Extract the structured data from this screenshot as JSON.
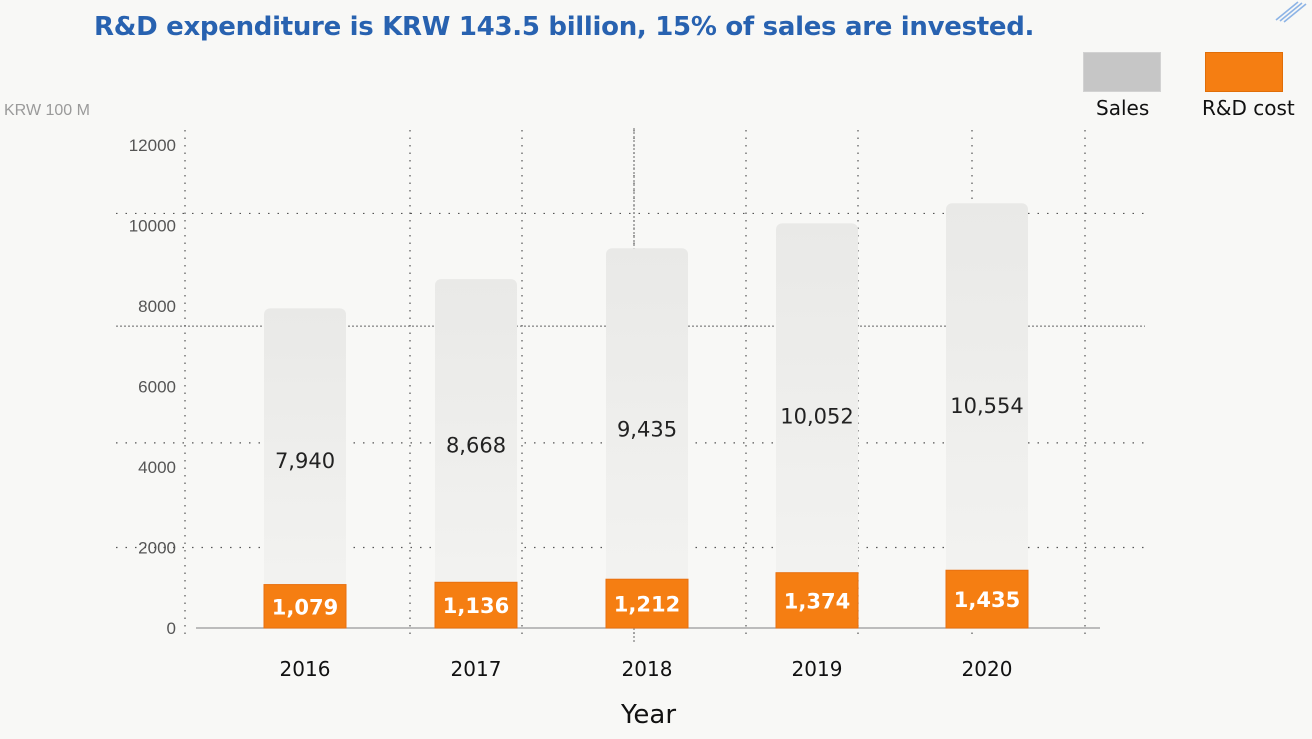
{
  "title": "R&D expenditure is KRW 143.5 billion, 15% of sales are invested.",
  "unit_label": "KRW 100 M",
  "legend": [
    {
      "label": "Sales",
      "color": "#c6c6c6"
    },
    {
      "label": "R&D cost",
      "color": "#f57e12"
    }
  ],
  "chart_data": {
    "type": "bar",
    "categories": [
      "2016",
      "2017",
      "2018",
      "2019",
      "2020"
    ],
    "series": [
      {
        "name": "Sales",
        "values": [
          7940,
          8668,
          9435,
          10052,
          10554
        ],
        "labels": [
          "7,940",
          "8,668",
          "9,435",
          "10,052",
          "10,554"
        ],
        "color": "#ececea"
      },
      {
        "name": "R&D cost",
        "values": [
          1079,
          1136,
          1212,
          1374,
          1435
        ],
        "labels": [
          "1,079",
          "1,136",
          "1,212",
          "1,374",
          "1,435"
        ],
        "color": "#f57e12"
      }
    ],
    "yticks": [
      0,
      2000,
      4000,
      6000,
      8000,
      10000,
      12000
    ],
    "ylim": [
      0,
      12000
    ],
    "xlabel": "Year",
    "ylabel": "KRW 100 M",
    "grid": true
  }
}
